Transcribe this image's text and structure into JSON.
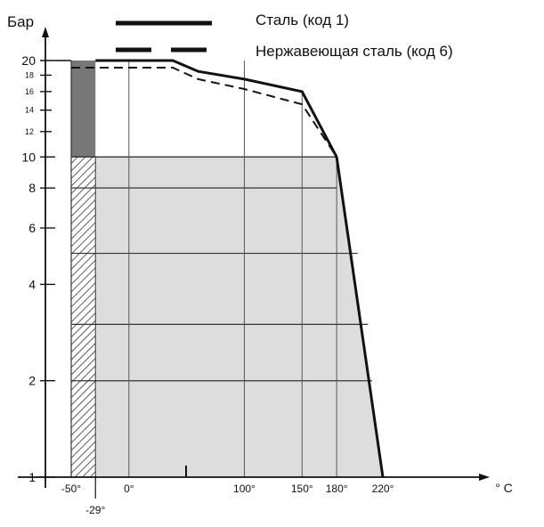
{
  "chart_data": {
    "type": "line",
    "ylabel": "Бар",
    "xlabel": "° C",
    "y_scale": "log",
    "ylim": [
      1,
      20
    ],
    "xlim": [
      -50,
      220
    ],
    "y_ticks": [
      {
        "value": 1,
        "label": "1"
      },
      {
        "value": 2,
        "label": "2"
      },
      {
        "value": 4,
        "label": "4"
      },
      {
        "value": 6,
        "label": "6"
      },
      {
        "value": 8,
        "label": "8"
      },
      {
        "value": 10,
        "label": "10"
      },
      {
        "value": 12,
        "label": "12"
      },
      {
        "value": 14,
        "label": "14"
      },
      {
        "value": 16,
        "label": "16"
      },
      {
        "value": 18,
        "label": "18"
      },
      {
        "value": 20,
        "label": "20"
      }
    ],
    "x_ticks": [
      {
        "value": -50,
        "label": "-50°"
      },
      {
        "value": 0,
        "label": "0°"
      },
      {
        "value": 100,
        "label": "100°"
      },
      {
        "value": 150,
        "label": "150°"
      },
      {
        "value": 180,
        "label": "180°"
      },
      {
        "value": 220,
        "label": "220°"
      }
    ],
    "extra_x_label": {
      "value": -29,
      "label": "-29°"
    },
    "series": [
      {
        "name": "Сталь (код 1)",
        "style": "solid",
        "color": "#111111",
        "points": [
          [
            -29,
            20
          ],
          [
            38,
            20
          ],
          [
            60,
            18.5
          ],
          [
            100,
            17.5
          ],
          [
            150,
            16
          ],
          [
            180,
            10
          ],
          [
            220,
            1
          ]
        ]
      },
      {
        "name": "Нержавеющая сталь (код 6)",
        "style": "dashed",
        "color": "#111111",
        "points": [
          [
            -50,
            19
          ],
          [
            38,
            19
          ],
          [
            60,
            17.5
          ],
          [
            100,
            16.3
          ],
          [
            150,
            14.6
          ],
          [
            180,
            10
          ],
          [
            220,
            1
          ]
        ]
      }
    ],
    "region_fill": "#dddddd",
    "dark_band_color": "#777777",
    "hatch_color": "#333333",
    "grid": true
  }
}
